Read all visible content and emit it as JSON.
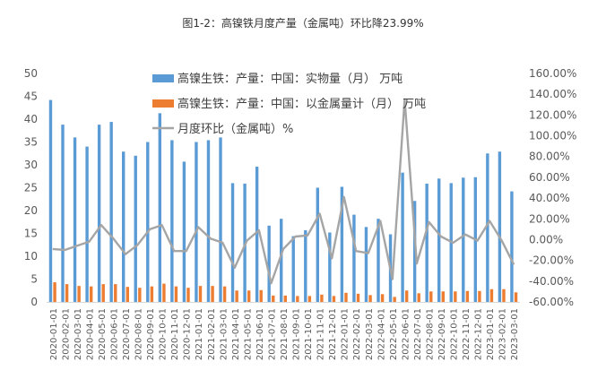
{
  "chart_data": {
    "type": "bar",
    "title": "图1-2：高镍铁月度产量（金属吨）环比降23.99%",
    "categories": [
      "2020-01-01",
      "2020-02-01",
      "2020-03-01",
      "2020-04-01",
      "2020-05-01",
      "2020-06-01",
      "2020-07-01",
      "2020-08-01",
      "2020-09-01",
      "2020-10-01",
      "2020-11-01",
      "2020-12-01",
      "2021-01-01",
      "2021-02-01",
      "2021-03-01",
      "2021-04-01",
      "2021-05-01",
      "2021-06-01",
      "2021-07-01",
      "2021-08-01",
      "2021-09-01",
      "2021-10-01",
      "2021-11-01",
      "2021-12-01",
      "2022-01-01",
      "2022-02-01",
      "2022-03-01",
      "2022-04-01",
      "2022-05-01",
      "2022-06-01",
      "2022-07-01",
      "2022-08-01",
      "2022-09-01",
      "2022-10-01",
      "2022-11-01",
      "2022-12-01",
      "2023-01-01",
      "2023-02-01",
      "2023-03-01"
    ],
    "series": [
      {
        "name": "高镍生铁：产量：中国：实物量（月）  万吨",
        "type": "bar",
        "axis": "left",
        "color": "#5B9BD5",
        "values": [
          44.2,
          38.8,
          36.0,
          34.0,
          38.8,
          39.4,
          32.9,
          32.0,
          35.0,
          41.3,
          35.4,
          30.7,
          35.0,
          35.4,
          36.0,
          26.0,
          25.9,
          29.6,
          16.7,
          18.2,
          14.4,
          15.7,
          25.0,
          15.2,
          25.2,
          19.1,
          16.4,
          18.2,
          14.8,
          28.3,
          22.1,
          25.9,
          27.0,
          26.0,
          27.2,
          27.3,
          32.5,
          32.9,
          24.2
        ]
      },
      {
        "name": "高镍生铁：产量：中国：以金属量计（月）  万吨",
        "type": "bar",
        "axis": "left",
        "color": "#ED7D31",
        "values": [
          4.3,
          3.9,
          3.5,
          3.4,
          3.9,
          3.9,
          3.3,
          3.1,
          3.4,
          4.0,
          3.4,
          3.1,
          3.5,
          3.5,
          3.4,
          2.5,
          2.5,
          2.6,
          1.4,
          1.4,
          1.3,
          1.3,
          1.6,
          1.3,
          2.0,
          1.8,
          1.5,
          1.7,
          1.1,
          2.5,
          1.9,
          2.3,
          2.3,
          2.3,
          2.4,
          2.4,
          2.8,
          2.8,
          2.1
        ]
      },
      {
        "name": "月度环比（金属吨）%",
        "type": "line",
        "axis": "right",
        "color": "#A5A5A5",
        "values": [
          -9,
          -10,
          -6,
          -2,
          14,
          1,
          -14,
          -5,
          10,
          14,
          -11,
          -11,
          12,
          1,
          -3,
          -27,
          -1,
          9,
          -42,
          -9,
          3,
          4,
          25,
          -18,
          41,
          -11,
          -13,
          18,
          -38,
          135,
          -23,
          17,
          3,
          -3,
          5,
          -1,
          18,
          -1,
          -24
        ]
      }
    ],
    "y_left": {
      "min": 0,
      "max": 50,
      "step": 5,
      "tick_labels": [
        "0",
        "5",
        "10",
        "15",
        "20",
        "25",
        "30",
        "35",
        "40",
        "45",
        "50"
      ]
    },
    "y_right": {
      "min": -60,
      "max": 160,
      "step": 20,
      "tick_labels": [
        "-60.00%",
        "-40.00%",
        "-20.00%",
        "0.00%",
        "20.00%",
        "40.00%",
        "60.00%",
        "80.00%",
        "100.00%",
        "120.00%",
        "140.00%",
        "160.00%"
      ]
    },
    "legend": "top-left inside",
    "grid": false
  }
}
